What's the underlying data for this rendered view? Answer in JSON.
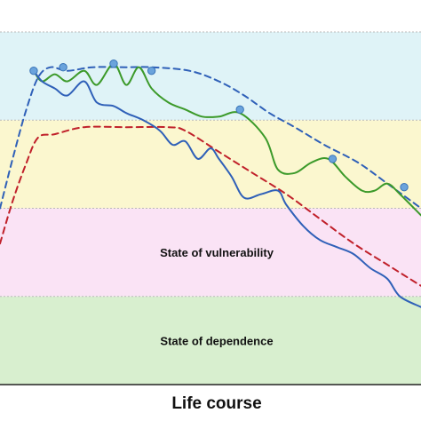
{
  "chart_data": {
    "type": "line",
    "title": "",
    "xlabel": "Life course",
    "ylabel": "",
    "xlim": [
      0,
      100
    ],
    "ylim": [
      0,
      100
    ],
    "grid": false,
    "bands": [
      {
        "name": "",
        "from": 75,
        "to": 100,
        "color": "#dff3f7"
      },
      {
        "name": "",
        "from": 50,
        "to": 75,
        "color": "#fbf7cf"
      },
      {
        "name": "State of vulnerability",
        "from": 25,
        "to": 50,
        "color": "#fae3f5"
      },
      {
        "name": "State of dependence",
        "from": 0,
        "to": 25,
        "color": "#d8efcf"
      }
    ],
    "series": [
      {
        "color": "#2f60b8",
        "style": "dashed",
        "x": [
          0,
          3,
          6,
          9,
          12,
          16,
          22,
          30,
          36,
          45,
          52,
          58,
          64,
          70,
          77,
          85,
          92,
          100
        ],
        "y": [
          50,
          64,
          77,
          87,
          90,
          89,
          90,
          90,
          90,
          89,
          86,
          82,
          77,
          73,
          68,
          63,
          57,
          50
        ]
      },
      {
        "color": "#c0202a",
        "style": "dashed",
        "x": [
          0,
          3,
          6,
          9,
          13,
          20,
          30,
          40,
          44,
          52,
          60,
          68,
          76,
          84,
          92,
          100
        ],
        "y": [
          40,
          52,
          62,
          70,
          71,
          73,
          73,
          73,
          72,
          66,
          60,
          54,
          47,
          40,
          34,
          28
        ]
      },
      {
        "color": "#3c9a2a",
        "style": "solid",
        "x": [
          8,
          10,
          13,
          16,
          20,
          23,
          27,
          30,
          33,
          36,
          40,
          44,
          48,
          52,
          57,
          63,
          66,
          70,
          74,
          78,
          82,
          86,
          89,
          92,
          95,
          100
        ],
        "y": [
          89,
          86,
          88,
          86,
          89,
          85,
          91,
          85,
          90,
          84,
          80,
          78,
          76,
          76,
          77,
          70,
          61,
          60,
          63,
          64,
          59,
          55,
          55,
          57,
          54,
          48
        ]
      },
      {
        "color": "#2f60b8",
        "style": "solid",
        "x": [
          8,
          10,
          13,
          16,
          20,
          23,
          27,
          30,
          34,
          38,
          41,
          44,
          47,
          50,
          52,
          55,
          58,
          62,
          66,
          68,
          72,
          76,
          80,
          84,
          88,
          92,
          95,
          100
        ],
        "y": [
          89,
          86,
          84,
          82,
          86,
          80,
          79,
          77,
          75,
          72,
          68,
          69,
          64,
          67,
          64,
          59,
          53,
          54,
          55,
          51,
          45,
          41,
          39,
          37,
          33,
          30,
          25,
          22
        ]
      }
    ],
    "markers": {
      "color": "#6aa3dc",
      "x": [
        8,
        15,
        27,
        36,
        57,
        79,
        96
      ],
      "y": [
        89,
        90,
        91,
        89,
        78,
        64,
        56
      ]
    }
  }
}
